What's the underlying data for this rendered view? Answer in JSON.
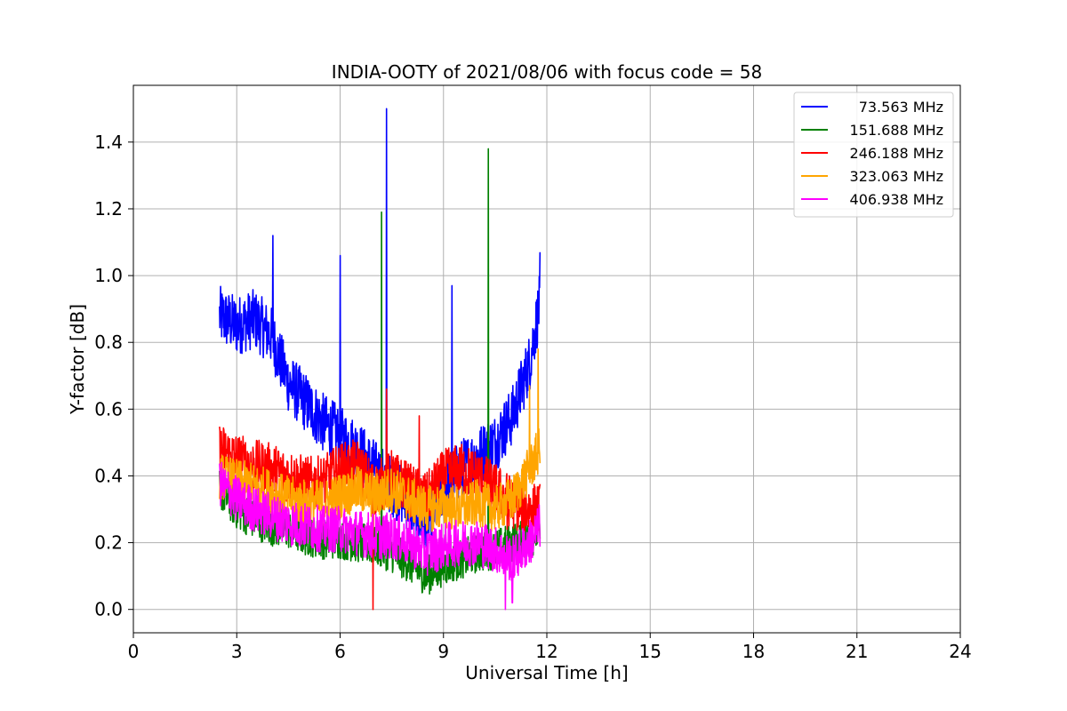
{
  "chart_data": {
    "type": "line",
    "title": "INDIA-OOTY of 2021/08/06 with focus code = 58",
    "xlabel": "Universal Time [h]",
    "ylabel": "Y-factor [dB]",
    "xlim": [
      0,
      24
    ],
    "ylim": [
      -0.07,
      1.57
    ],
    "xticks": [
      "0",
      "3",
      "6",
      "9",
      "12",
      "15",
      "18",
      "21",
      "24"
    ],
    "xtick_values": [
      0,
      3,
      6,
      9,
      12,
      15,
      18,
      21,
      24
    ],
    "yticks": [
      "0.0",
      "0.2",
      "0.4",
      "0.6",
      "0.8",
      "1.0",
      "1.2",
      "1.4"
    ],
    "ytick_values": [
      0,
      0.2,
      0.4,
      0.6,
      0.8,
      1.0,
      1.2,
      1.4
    ],
    "grid": true,
    "legend_position": "top-right",
    "series": [
      {
        "name": "73.563 MHz",
        "color": "#0000ff",
        "x": [
          2.5,
          3.0,
          3.5,
          4.0,
          4.5,
          5.0,
          5.5,
          6.0,
          6.5,
          7.0,
          7.4,
          8.0,
          8.5,
          9.0,
          9.5,
          10.0,
          10.5,
          11.0,
          11.5,
          11.8
        ],
        "y": [
          0.88,
          0.85,
          0.87,
          0.82,
          0.68,
          0.62,
          0.56,
          0.52,
          0.48,
          0.42,
          0.38,
          0.32,
          0.25,
          0.36,
          0.42,
          0.46,
          0.5,
          0.58,
          0.74,
          0.92
        ],
        "spikes": [
          [
            4.05,
            1.12
          ],
          [
            6.0,
            1.06
          ],
          [
            7.35,
            1.5
          ],
          [
            9.25,
            0.97
          ],
          [
            11.8,
            1.07
          ]
        ]
      },
      {
        "name": "151.688 MHz",
        "color": "#008000",
        "x": [
          2.5,
          3.0,
          3.5,
          4.0,
          4.5,
          5.0,
          5.5,
          6.0,
          6.5,
          7.0,
          7.5,
          8.0,
          8.5,
          9.0,
          9.5,
          10.0,
          10.5,
          11.0,
          11.5,
          11.8
        ],
        "y": [
          0.36,
          0.3,
          0.27,
          0.25,
          0.24,
          0.22,
          0.21,
          0.21,
          0.2,
          0.19,
          0.17,
          0.14,
          0.1,
          0.13,
          0.15,
          0.17,
          0.18,
          0.2,
          0.21,
          0.24
        ],
        "spikes": [
          [
            7.2,
            1.19
          ],
          [
            10.3,
            1.38
          ]
        ]
      },
      {
        "name": "246.188 MHz",
        "color": "#ff0000",
        "x": [
          2.5,
          3.0,
          3.5,
          4.0,
          4.5,
          5.0,
          5.5,
          6.0,
          6.5,
          7.0,
          7.5,
          8.0,
          8.5,
          9.0,
          9.5,
          10.0,
          10.5,
          11.0,
          11.5,
          11.8
        ],
        "y": [
          0.48,
          0.45,
          0.43,
          0.42,
          0.4,
          0.38,
          0.38,
          0.42,
          0.43,
          0.36,
          0.4,
          0.36,
          0.33,
          0.4,
          0.42,
          0.4,
          0.36,
          0.32,
          0.3,
          0.3
        ],
        "spikes": [
          [
            6.95,
            0.0
          ],
          [
            7.35,
            0.66
          ],
          [
            8.3,
            0.58
          ],
          [
            10.85,
            0.24
          ]
        ]
      },
      {
        "name": "323.063 MHz",
        "color": "#ffa500",
        "x": [
          2.5,
          3.0,
          3.5,
          4.0,
          4.5,
          5.0,
          5.5,
          6.0,
          6.5,
          7.0,
          7.5,
          8.0,
          8.5,
          9.0,
          9.5,
          10.0,
          10.5,
          11.0,
          11.5,
          11.8
        ],
        "y": [
          0.4,
          0.38,
          0.37,
          0.35,
          0.33,
          0.32,
          0.32,
          0.34,
          0.36,
          0.34,
          0.36,
          0.33,
          0.3,
          0.31,
          0.3,
          0.32,
          0.3,
          0.33,
          0.42,
          0.48
        ],
        "spikes": [
          [
            11.75,
            0.78
          ],
          [
            11.5,
            0.67
          ]
        ]
      },
      {
        "name": "406.938 MHz",
        "color": "#ff00ff",
        "x": [
          2.5,
          3.0,
          3.5,
          4.0,
          4.5,
          5.0,
          5.5,
          6.0,
          6.5,
          7.0,
          7.5,
          8.0,
          8.5,
          9.0,
          9.5,
          10.0,
          10.5,
          11.0,
          11.5,
          11.8
        ],
        "y": [
          0.38,
          0.33,
          0.3,
          0.28,
          0.26,
          0.25,
          0.24,
          0.24,
          0.23,
          0.22,
          0.22,
          0.2,
          0.17,
          0.19,
          0.2,
          0.2,
          0.18,
          0.15,
          0.2,
          0.25
        ],
        "spikes": [
          [
            10.8,
            0.0
          ],
          [
            11.0,
            0.02
          ]
        ]
      }
    ]
  }
}
